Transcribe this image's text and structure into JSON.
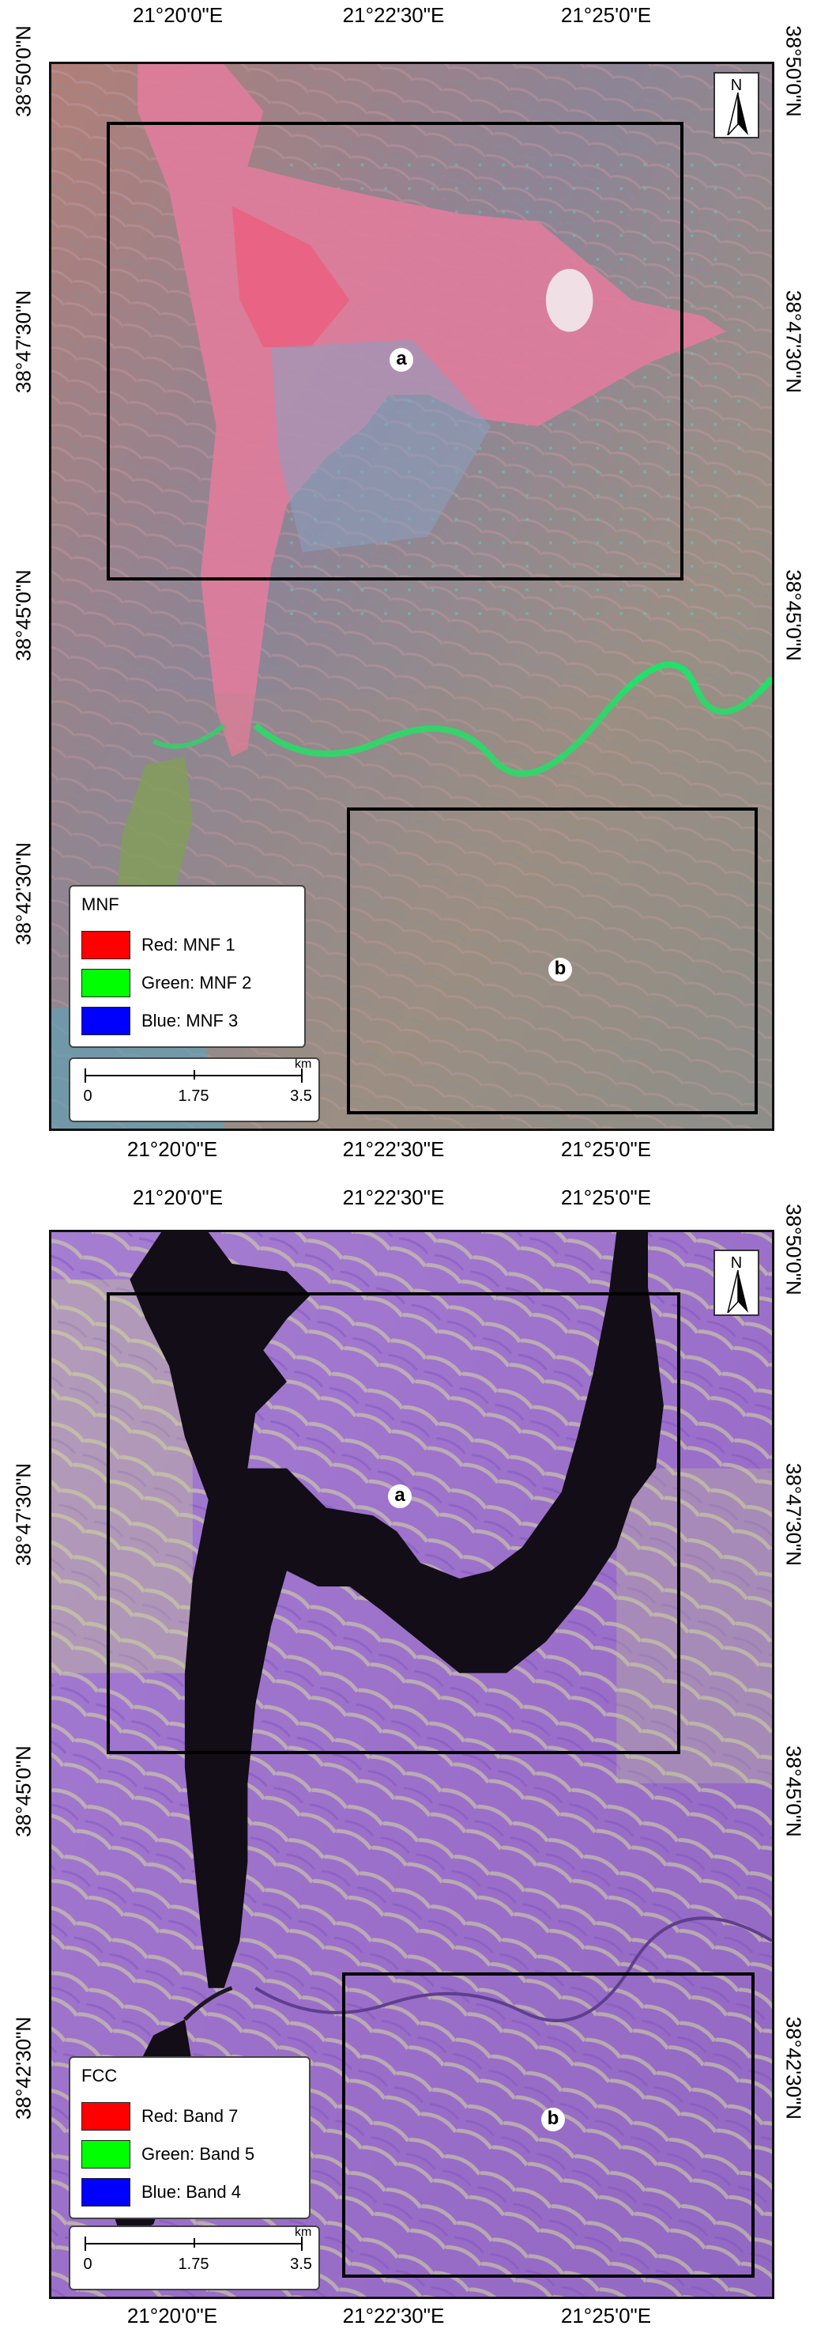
{
  "top_map": {
    "ticks_top": [
      "21°20'0\"E",
      "21°22'30\"E",
      "21°25'0\"E"
    ],
    "ticks_bottom": [
      "21°20'0\"E",
      "21°22'30\"E",
      "21°25'0\"E"
    ],
    "ticks_left": [
      "38°50'0\"N",
      "38°47'30\"N",
      "38°45'0\"N",
      "38°42'30\"N"
    ],
    "ticks_right": [
      "38°50'0\"N",
      "38°47'30\"N",
      "38°45'0\"N"
    ],
    "north_label": "N",
    "markers": {
      "a": "a",
      "b": "b"
    },
    "legend": {
      "title": "MNF",
      "items": [
        {
          "label": "Red: MNF 1",
          "color": "#ff0000"
        },
        {
          "label": "Green: MNF 2",
          "color": "#00ff00"
        },
        {
          "label": "Blue: MNF 3",
          "color": "#0000ff"
        }
      ]
    },
    "scale": {
      "labels": [
        "0",
        "1.75",
        "3.5"
      ],
      "unit": "km"
    }
  },
  "bottom_map": {
    "ticks_top": [
      "21°20'0\"E",
      "21°22'30\"E",
      "21°25'0\"E"
    ],
    "ticks_bottom": [
      "21°20'0\"E",
      "21°22'30\"E",
      "21°25'0\"E"
    ],
    "ticks_left": [
      "38°47'30\"N",
      "38°45'0\"N",
      "38°42'30\"N"
    ],
    "ticks_right": [
      "38°50'0\"N",
      "38°47'30\"N",
      "38°45'0\"N",
      "38°42'30\"N"
    ],
    "north_label": "N",
    "markers": {
      "a": "a",
      "b": "b"
    },
    "legend": {
      "title": "FCC",
      "items": [
        {
          "label": "Red: Band 7",
          "color": "#ff0000"
        },
        {
          "label": "Green: Band 5",
          "color": "#00ff00"
        },
        {
          "label": "Blue: Band 4",
          "color": "#0000ff"
        }
      ]
    },
    "scale": {
      "labels": [
        "0",
        "1.75",
        "3.5"
      ],
      "unit": "km"
    }
  }
}
